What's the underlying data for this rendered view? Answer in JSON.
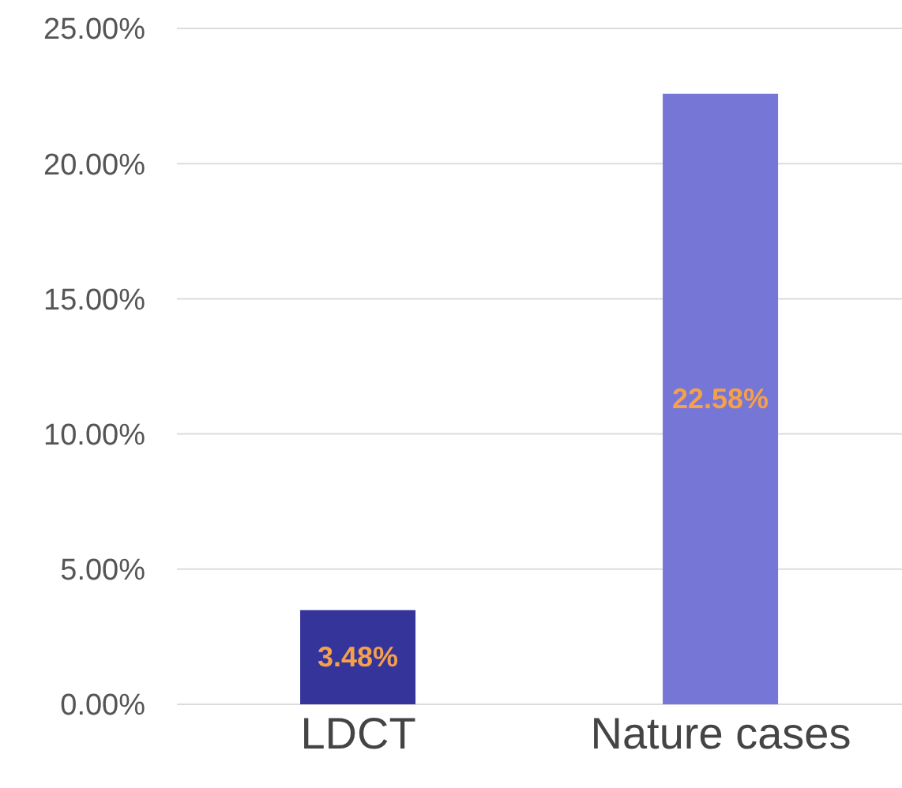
{
  "chart_data": {
    "type": "bar",
    "categories": [
      "LDCT",
      "Nature cases"
    ],
    "values": [
      3.48,
      22.58
    ],
    "colors": [
      "#35349a",
      "#7676d6"
    ],
    "value_labels": [
      "3.48%",
      "22.58%"
    ],
    "ylim": [
      0,
      25
    ],
    "yticks": [
      {
        "value": 0,
        "label": "0.00%"
      },
      {
        "value": 5,
        "label": "5.00%"
      },
      {
        "value": 10,
        "label": "10.00%"
      },
      {
        "value": 15,
        "label": "15.00%"
      },
      {
        "value": 20,
        "label": "20.00%"
      },
      {
        "value": 25,
        "label": "25.00%"
      }
    ],
    "grid": "y",
    "legend": false
  }
}
